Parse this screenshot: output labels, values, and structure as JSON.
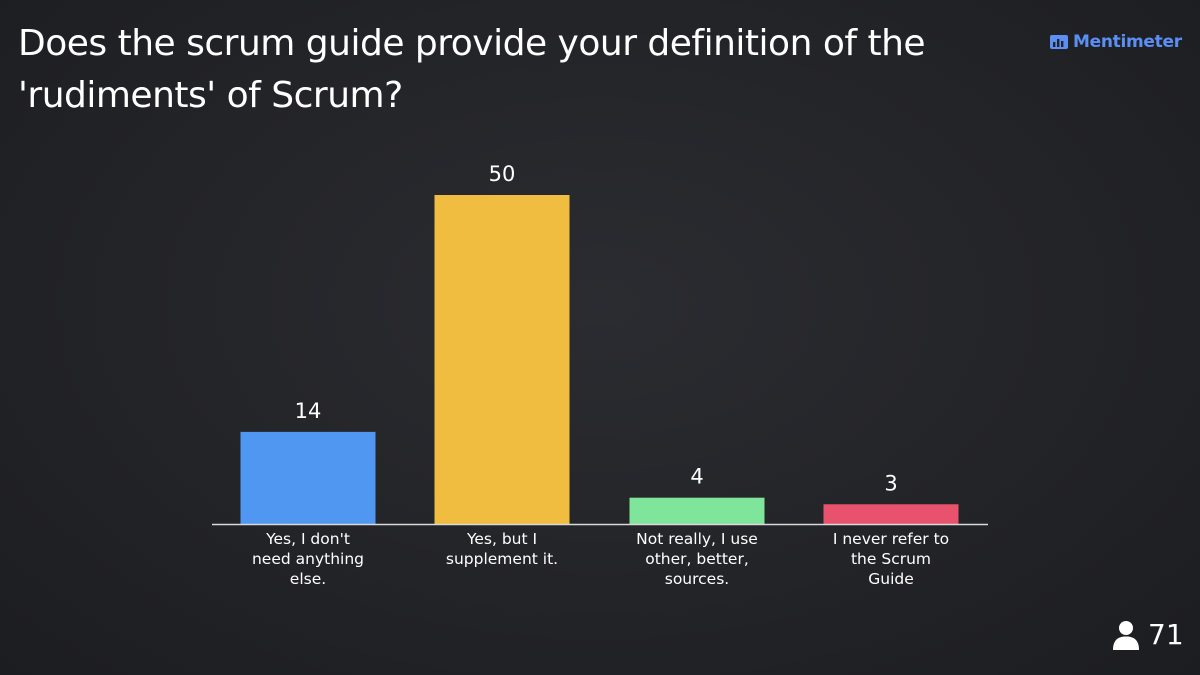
{
  "question": {
    "title": "Does the scrum guide provide your definition of the 'rudiments' of Scrum?"
  },
  "brand": {
    "name": "Mentimeter",
    "icon": "bar-chart-icon",
    "color": "#5b8ff5"
  },
  "participants": {
    "count": "71",
    "icon": "person-icon"
  },
  "chart_data": {
    "type": "bar",
    "title": "",
    "xlabel": "",
    "ylabel": "",
    "ylim": [
      0,
      50
    ],
    "grid": false,
    "categories": [
      "Yes, I don't need anything else.",
      "Yes, but I supplement it.",
      "Not really, I use other, better, sources.",
      "I never refer to the Scrum Guide"
    ],
    "category_lines": [
      [
        "Yes, I don't",
        "need anything",
        "else."
      ],
      [
        "Yes, but I",
        "supplement it."
      ],
      [
        "Not really, I use",
        "other, better,",
        "sources."
      ],
      [
        "I never refer to",
        "the Scrum",
        "Guide"
      ]
    ],
    "values": [
      14,
      50,
      4,
      3
    ],
    "colors": [
      "#4f97f1",
      "#f1bd40",
      "#7fe59a",
      "#e8526c"
    ]
  }
}
